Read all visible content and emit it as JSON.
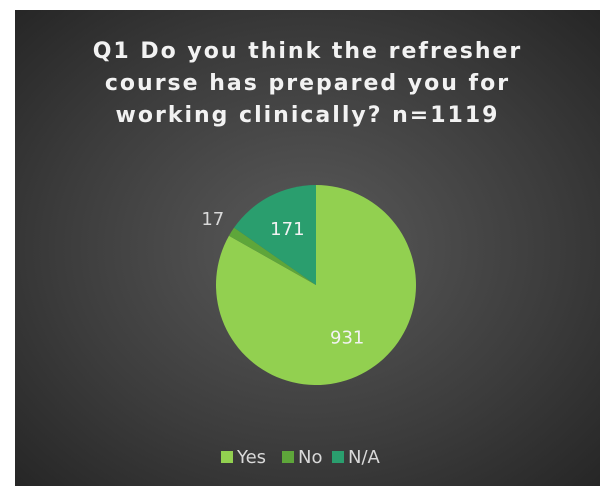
{
  "chart_data": {
    "type": "pie",
    "title": "Q1 Do you think the refresher course has prepared you for working clinically? n=1119",
    "categories": [
      "Yes",
      "No",
      "N/A"
    ],
    "values": [
      931,
      17,
      171
    ],
    "colors": [
      "#92d050",
      "#5ea63a",
      "#2a9e6e"
    ],
    "legend": "bottom"
  }
}
